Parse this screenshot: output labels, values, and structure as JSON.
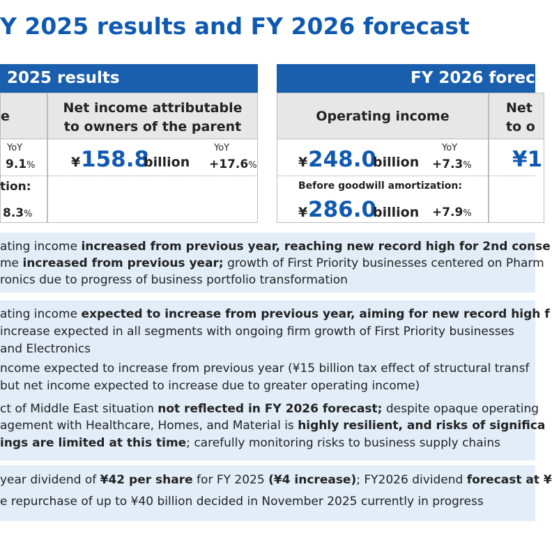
{
  "title": "Y 2025 results and FY 2026 forecast",
  "results": {
    "header": "2025 results",
    "col1_header": "e",
    "col2_header": [
      "Net income attributable",
      "to owners of the parent"
    ],
    "op_yoy_label": "YoY",
    "op_yoy": "9.1",
    "op_yoy_unit": "%",
    "op_before_label": "tion:",
    "op_before_yoy": "8.3",
    "op_before_unit": "%",
    "net_currency": "¥",
    "net_value": "158.8",
    "net_unit": "billion",
    "net_yoy_label": "YoY",
    "net_yoy": "+17.6",
    "net_yoy_unit": "%"
  },
  "forecast": {
    "header": "FY 2026 forec",
    "col1_header": "Operating income",
    "col2_header": [
      "Net",
      "to o"
    ],
    "op_currency": "¥",
    "op_value": "248.0",
    "op_unit": "billion",
    "op_yoy_label": "YoY",
    "op_yoy": "+7.3",
    "op_yoy_unit": "%",
    "before_label": "Before goodwill amortization:",
    "before_currency": "¥",
    "before_value": "286.0",
    "before_unit": "billion",
    "before_yoy": "+7.9",
    "before_yoy_unit": "%",
    "net_value": "¥1"
  },
  "boxes": [
    {
      "lines": [
        [
          {
            "text": "ating income "
          },
          {
            "text": "increased from previous year, reaching new record high for 2nd conse",
            "bold": true
          }
        ],
        [
          {
            "text": "me "
          },
          {
            "text": "increased from previous year;",
            "bold": true
          },
          {
            "text": " growth of First Priority businesses centered on Pharm"
          }
        ],
        [
          {
            "text": "ronics due to progress of business portfolio transformation"
          }
        ]
      ]
    },
    {
      "lines": [
        [
          {
            "text": "ating income "
          },
          {
            "text": "expected to increase from previous year, aiming for new record high f",
            "bold": true
          }
        ],
        [
          {
            "text": "increase expected in all segments with ongoing firm growth of First Priority businesses"
          }
        ],
        [
          {
            "text": "and Electronics"
          }
        ],
        [
          {
            "text": "ncome expected to increase from previous year (¥15 billion tax effect of structural transf"
          }
        ],
        [
          {
            "text": "but net income expected to increase due to greater operating income)"
          }
        ],
        [
          {
            "text": "ct of Middle East situation "
          },
          {
            "text": "not reflected in FY 2026 forecast;",
            "bold": true
          },
          {
            "text": " despite opaque operating"
          }
        ],
        [
          {
            "text": "agement with Healthcare, Homes, and Material is "
          },
          {
            "text": "highly resilient, and risks of significa",
            "bold": true
          }
        ],
        [
          {
            "text": "ings are limited at this time",
            "bold": true
          },
          {
            "text": "; carefully monitoring risks to business supply chains"
          }
        ]
      ]
    },
    {
      "lines": [
        [
          {
            "text": "year dividend of "
          },
          {
            "text": "¥42 per share",
            "bold": true
          },
          {
            "text": " for FY 2025 "
          },
          {
            "text": "(¥4 increase)",
            "bold": true
          },
          {
            "text": "; FY2026 dividend "
          },
          {
            "text": "forecast at ¥",
            "bold": true
          }
        ],
        [
          {
            "text": "e repurchase of up to ¥40 billion decided in November 2025 currently in progress"
          }
        ]
      ]
    }
  ]
}
